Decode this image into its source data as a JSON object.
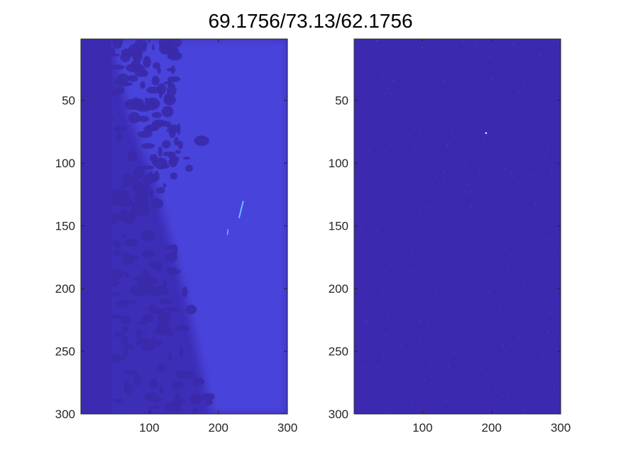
{
  "figure": {
    "title": "69.1756/73.13/62.1756"
  },
  "chart_data": [
    {
      "type": "heatmap",
      "title": "",
      "xlabel": "",
      "ylabel": "",
      "xlim": [
        1,
        300
      ],
      "ylim": [
        300,
        1
      ],
      "y_reversed": true,
      "xticks": [
        100,
        200,
        300
      ],
      "yticks": [
        50,
        100,
        150,
        200,
        250,
        300
      ],
      "grid": false,
      "legend": "none",
      "colors": {
        "base": "#3d2eb8",
        "bright": "#4c47e0",
        "dark_blobs": "#3a2aaa",
        "left_strip": "#3b2bb0",
        "highlight": "#66c0ff"
      },
      "features": {
        "left_strip_x_end": 45,
        "bright_streak": {
          "x": 233,
          "y": 137
        },
        "bright_streak_2": {
          "x": 213,
          "y": 155
        }
      }
    },
    {
      "type": "heatmap",
      "title": "",
      "xlabel": "",
      "ylabel": "",
      "xlim": [
        1,
        300
      ],
      "ylim": [
        300,
        1
      ],
      "y_reversed": true,
      "xticks": [
        100,
        200,
        300
      ],
      "yticks": [
        50,
        100,
        150,
        200,
        250,
        300
      ],
      "grid": false,
      "legend": "none",
      "colors": {
        "base": "#3b2ab0",
        "speckle": "#4a44d8",
        "highlight": "#c8e8ff"
      },
      "features": {
        "highlight_point": {
          "x": 192,
          "y": 76
        }
      }
    }
  ]
}
